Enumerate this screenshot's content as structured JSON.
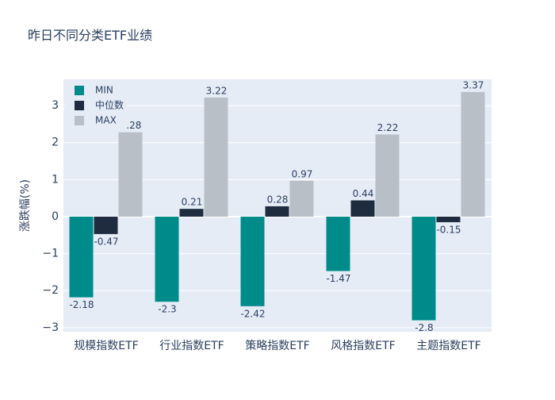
{
  "chart_data": {
    "type": "bar",
    "title": "昨日不同分类ETF业绩",
    "y_label": "涨跌幅(%)",
    "categories": [
      "规模指数ETF",
      "行业指数ETF",
      "策略指数ETF",
      "风格指数ETF",
      "主题指数ETF"
    ],
    "series": [
      {
        "name": "MIN",
        "color": "#008b8b",
        "values": [
          -2.18,
          -2.3,
          -2.42,
          -1.47,
          -2.8
        ]
      },
      {
        "name": "中位数",
        "color": "#1f2b3f",
        "values": [
          -0.47,
          0.21,
          0.28,
          0.44,
          -0.15
        ]
      },
      {
        "name": "MAX",
        "color": "#b8bfc7",
        "values": [
          2.28,
          3.22,
          0.97,
          2.22,
          3.37
        ]
      }
    ],
    "ylim": [
      -3.11,
      3.71
    ],
    "yticks": [
      {
        "value": -3,
        "label": "−3"
      },
      {
        "value": -2,
        "label": "−2"
      },
      {
        "value": -1,
        "label": "−1"
      },
      0,
      1,
      2,
      3
    ],
    "grid": true,
    "legend": "top-left"
  }
}
